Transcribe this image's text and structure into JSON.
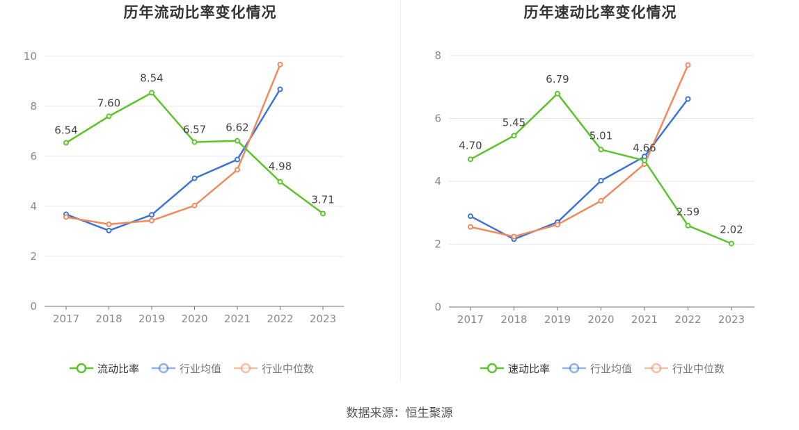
{
  "source": "数据来源：恒生聚源",
  "chart_data": [
    {
      "type": "line",
      "title": "历年流动比率变化情况",
      "categories": [
        "2017",
        "2018",
        "2019",
        "2020",
        "2021",
        "2022",
        "2023"
      ],
      "ylim": [
        0,
        10
      ],
      "yticks": [
        0,
        2,
        4,
        6,
        8,
        10
      ],
      "grid": true,
      "legend_position": "bottom",
      "series": [
        {
          "name": "流动比率",
          "color": "#5bc42b",
          "labeled": true,
          "values": [
            6.54,
            7.6,
            8.54,
            6.57,
            6.62,
            4.98,
            3.71
          ],
          "labels": [
            "6.54",
            "7.60",
            "8.54",
            "6.57",
            "6.62",
            "4.98",
            "3.71"
          ]
        },
        {
          "name": "行业均值",
          "color": "#3b73d9",
          "labeled": false,
          "values": [
            3.68,
            3.03,
            3.66,
            5.12,
            5.87,
            8.68,
            null
          ]
        },
        {
          "name": "行业中位数",
          "color": "#f08a5d",
          "labeled": false,
          "values": [
            3.57,
            3.28,
            3.43,
            4.03,
            5.46,
            9.67,
            null
          ]
        }
      ]
    },
    {
      "type": "line",
      "title": "历年速动比率变化情况",
      "categories": [
        "2017",
        "2018",
        "2019",
        "2020",
        "2021",
        "2022",
        "2023"
      ],
      "ylim": [
        0,
        8
      ],
      "yticks": [
        0,
        2,
        4,
        6,
        8
      ],
      "grid": true,
      "legend_position": "bottom",
      "series": [
        {
          "name": "速动比率",
          "color": "#5bc42b",
          "labeled": true,
          "values": [
            4.7,
            5.45,
            6.79,
            5.01,
            4.66,
            2.59,
            2.02
          ],
          "labels": [
            "4.70",
            "5.45",
            "6.79",
            "5.01",
            "4.66",
            "2.59",
            "2.02"
          ]
        },
        {
          "name": "行业均值",
          "color": "#3b73d9",
          "labeled": false,
          "values": [
            2.89,
            2.16,
            2.7,
            4.02,
            4.79,
            6.62,
            null
          ]
        },
        {
          "name": "行业中位数",
          "color": "#f08a5d",
          "labeled": false,
          "values": [
            2.55,
            2.24,
            2.62,
            3.38,
            4.55,
            7.7,
            null
          ]
        }
      ]
    }
  ]
}
